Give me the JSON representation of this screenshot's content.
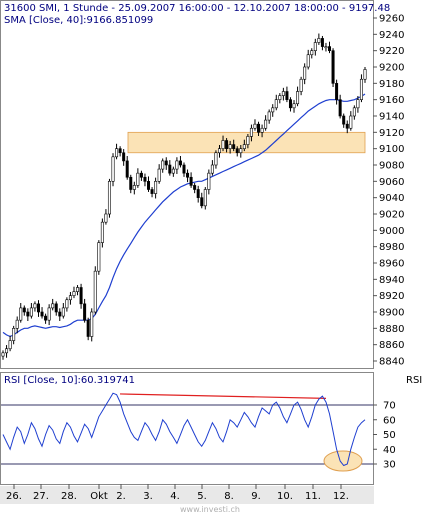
{
  "chart_data": [
    {
      "type": "candlestick",
      "title": "31600  SMI, 1 Stunde - 25.09.2007 16:00:00 - 12.10.2007 18:00:00 - 9197.48",
      "indicator_label": "SMA [Close, 40]:9166.851099",
      "ylim": [
        8830,
        9275
      ],
      "yticks": [
        8840,
        8860,
        8880,
        8900,
        8920,
        8940,
        8960,
        8980,
        9000,
        9020,
        9040,
        9060,
        9080,
        9100,
        9120,
        9140,
        9160,
        9180,
        9200,
        9220,
        9240,
        9260
      ],
      "xticks": [
        "26.",
        "27.",
        "28.",
        "Okt",
        "2.",
        "3.",
        "4.",
        "5.",
        "8.",
        "9.",
        "10.",
        "11.",
        "12."
      ],
      "resistance_zone": [
        9095,
        9120
      ],
      "close_path": [
        8850,
        8855,
        8865,
        8880,
        8890,
        8905,
        8900,
        8895,
        8905,
        8910,
        8900,
        8895,
        8890,
        8905,
        8910,
        8900,
        8895,
        8905,
        8915,
        8920,
        8925,
        8930,
        8910,
        8890,
        8870,
        8900,
        8950,
        8985,
        9010,
        9020,
        9060,
        9090,
        9100,
        9095,
        9085,
        9065,
        9050,
        9055,
        9070,
        9065,
        9060,
        9050,
        9045,
        9060,
        9075,
        9085,
        9080,
        9070,
        9075,
        9085,
        9080,
        9070,
        9065,
        9055,
        9050,
        9040,
        9030,
        9050,
        9070,
        9080,
        9095,
        9100,
        9110,
        9100,
        9105,
        9100,
        9095,
        9100,
        9105,
        9115,
        9125,
        9130,
        9120,
        9125,
        9135,
        9145,
        9150,
        9160,
        9165,
        9170,
        9160,
        9150,
        9155,
        9170,
        9185,
        9200,
        9215,
        9220,
        9230,
        9235,
        9225,
        9225,
        9220,
        9180,
        9160,
        9140,
        9130,
        9125,
        9140,
        9150,
        9160,
        9185,
        9197
      ],
      "sma_path": [
        8875,
        8872,
        8870,
        8872,
        8875,
        8878,
        8880,
        8880,
        8882,
        8883,
        8882,
        8881,
        8880,
        8881,
        8882,
        8882,
        8881,
        8882,
        8883,
        8885,
        8888,
        8890,
        8890,
        8890,
        8890,
        8892,
        8897,
        8905,
        8913,
        8920,
        8930,
        8942,
        8953,
        8962,
        8970,
        8977,
        8984,
        8991,
        8998,
        9004,
        9010,
        9015,
        9020,
        9025,
        9030,
        9035,
        9039,
        9043,
        9047,
        9050,
        9053,
        9055,
        9057,
        9058,
        9059,
        9060,
        9060,
        9062,
        9064,
        9066,
        9068,
        9070,
        9072,
        9074,
        9076,
        9078,
        9080,
        9082,
        9084,
        9086,
        9088,
        9090,
        9092,
        9095,
        9098,
        9102,
        9106,
        9110,
        9114,
        9118,
        9122,
        9126,
        9130,
        9134,
        9138,
        9142,
        9146,
        9149,
        9152,
        9155,
        9157,
        9159,
        9160,
        9160,
        9160,
        9159,
        9158,
        9158,
        9159,
        9160,
        9162,
        9164,
        9167
      ]
    },
    {
      "type": "line",
      "title": "RSI [Close, 10]:60.319741",
      "ylabel": "RSI",
      "ylim": [
        25,
        80
      ],
      "yticks": [
        30,
        40,
        50,
        60,
        70
      ],
      "reference_lines": [
        30,
        70
      ],
      "series": [
        {
          "values": [
            50,
            45,
            40,
            48,
            55,
            52,
            44,
            50,
            58,
            54,
            47,
            42,
            50,
            56,
            53,
            47,
            44,
            52,
            58,
            55,
            49,
            45,
            51,
            57,
            54,
            48,
            55,
            62,
            66,
            70,
            74,
            78,
            77,
            72,
            64,
            58,
            52,
            48,
            46,
            52,
            58,
            55,
            50,
            46,
            52,
            60,
            57,
            52,
            48,
            44,
            50,
            56,
            60,
            55,
            50,
            45,
            42,
            46,
            52,
            58,
            54,
            48,
            45,
            52,
            60,
            58,
            55,
            60,
            65,
            62,
            58,
            55,
            62,
            68,
            66,
            64,
            70,
            72,
            68,
            62,
            58,
            64,
            70,
            72,
            67,
            60,
            55,
            62,
            70,
            74,
            76,
            72,
            64,
            52,
            40,
            32,
            29,
            30,
            40,
            48,
            55,
            58,
            60
          ]
        }
      ]
    }
  ],
  "footer": {
    "watermark": "www.investi.ch"
  }
}
